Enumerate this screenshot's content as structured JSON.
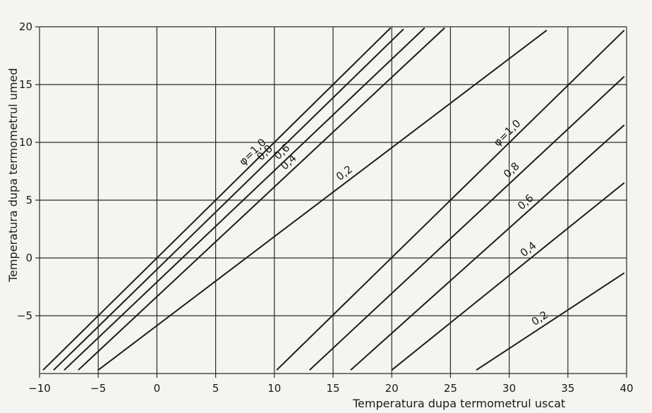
{
  "chart_data": {
    "type": "line",
    "title": "",
    "xlabel": "Temperatura dupa termometrul uscat",
    "ylabel": "Temperatura dupa termometrul umed",
    "xlim": [
      -10,
      40
    ],
    "ylim": [
      -10,
      20
    ],
    "x_ticks": [
      "−10",
      "−5",
      "0",
      "5",
      "10",
      "15",
      "20",
      "25",
      "30",
      "35",
      "40"
    ],
    "y_ticks": [
      "20",
      "15",
      "10",
      "5",
      "0",
      "−5"
    ],
    "grid": true,
    "series": [
      {
        "group": "upper",
        "label": "φ=1,0",
        "points": [
          [
            -9.7,
            -9.7
          ],
          [
            19.9,
            19.9
          ]
        ]
      },
      {
        "group": "upper",
        "label": "0,8",
        "points": [
          [
            -8.8,
            -9.7
          ],
          [
            21.0,
            19.8
          ]
        ]
      },
      {
        "group": "upper",
        "label": "0,6",
        "points": [
          [
            -7.9,
            -9.7
          ],
          [
            22.8,
            19.9
          ]
        ]
      },
      {
        "group": "upper",
        "label": "0,4",
        "points": [
          [
            -6.7,
            -9.7
          ],
          [
            24.5,
            19.9
          ]
        ]
      },
      {
        "group": "upper",
        "label": "0,2",
        "points": [
          [
            -5.0,
            -9.7
          ],
          [
            33.2,
            19.7
          ]
        ]
      },
      {
        "group": "lower",
        "label": "φ=1,0",
        "points": [
          [
            10.2,
            -9.7
          ],
          [
            39.8,
            19.7
          ]
        ]
      },
      {
        "group": "lower",
        "label": "0,8",
        "points": [
          [
            13.0,
            -9.7
          ],
          [
            39.8,
            15.7
          ]
        ]
      },
      {
        "group": "lower",
        "label": "0,6",
        "points": [
          [
            16.5,
            -9.7
          ],
          [
            39.8,
            11.5
          ]
        ]
      },
      {
        "group": "lower",
        "label": "0,4",
        "points": [
          [
            20.0,
            -9.7
          ],
          [
            39.8,
            6.5
          ]
        ]
      },
      {
        "group": "lower",
        "label": "0,2",
        "points": [
          [
            27.2,
            -9.7
          ],
          [
            39.8,
            -1.3
          ]
        ]
      }
    ]
  }
}
